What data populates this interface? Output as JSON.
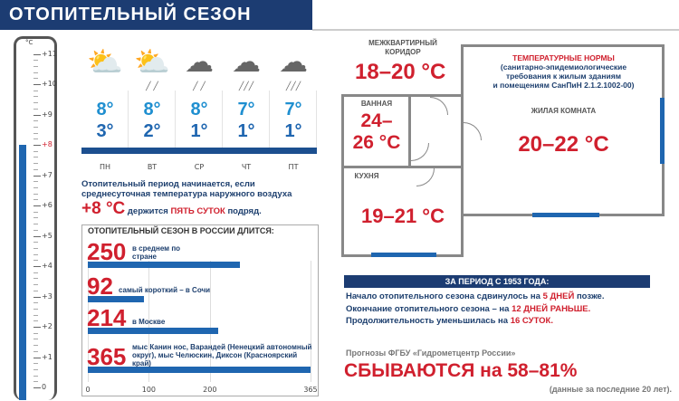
{
  "title": "ОТОПИТЕЛЬНЫЙ СЕЗОН",
  "thermometer": {
    "unit": "°C",
    "ticks": [
      "+11",
      "+10",
      "+9",
      "+8",
      "+7",
      "+6",
      "+5",
      "+4",
      "+3",
      "+2",
      "+1",
      "0"
    ],
    "level": 8,
    "highlight": "+8"
  },
  "forecast": [
    {
      "day": "ПН",
      "high": "8°",
      "low": "3°",
      "icon": "sun-cloud-icon"
    },
    {
      "day": "ВТ",
      "high": "8°",
      "low": "2°",
      "icon": "sun-cloud-rain-icon"
    },
    {
      "day": "СР",
      "high": "8°",
      "low": "1°",
      "icon": "cloud-rain-icon"
    },
    {
      "day": "ЧТ",
      "high": "7°",
      "low": "1°",
      "icon": "clouds-heavy-rain-icon"
    },
    {
      "day": "ПТ",
      "high": "7°",
      "low": "1°",
      "icon": "clouds-heavy-rain-icon"
    }
  ],
  "start_rule": {
    "line1": "Отопительный период начинается, если",
    "line2": "среднесуточная температура наружного воздуха",
    "temp": "+8 °C",
    "mid": "держится",
    "highlight": "ПЯТЬ СУТОК",
    "end": "подряд."
  },
  "chart_data": {
    "type": "bar",
    "title": "ОТОПИТЕЛЬНЫЙ СЕЗОН В РОССИИ ДЛИТСЯ:",
    "orientation": "horizontal",
    "bars": [
      {
        "value": 250,
        "label": "250",
        "desc": "в среднем по стране"
      },
      {
        "value": 92,
        "label": "92",
        "desc": "самый короткий – в Сочи"
      },
      {
        "value": 214,
        "label": "214",
        "desc": "в Москве"
      },
      {
        "value": 365,
        "label": "365",
        "desc": "мыс Канин нос, Варандей (Ненецкий автономный округ), мыс Челюскин, Диксон (Красноярский край)"
      }
    ],
    "xticks": [
      0,
      100,
      200,
      365
    ],
    "xlim": [
      0,
      365
    ],
    "grid": true
  },
  "floorplan": {
    "corridor": {
      "name": "МЕЖКВАРТИРНЫЙ КОРИДОР",
      "temp": "18–20 °C"
    },
    "norms": {
      "title": "ТЕМПЕРАТУРНЫЕ НОРМЫ",
      "l1": "(санитарно-эпидемиологические",
      "l2": "требования к жилым зданиям",
      "l3": "и помещениям СанПиН 2.1.2.1002-00)"
    },
    "living": {
      "name": "ЖИЛАЯ КОМНАТА",
      "temp": "20–22 °C"
    },
    "bath": {
      "name": "ВАННАЯ",
      "temp1": "24–",
      "temp2": "26 °C"
    },
    "kitchen": {
      "name": "КУХНЯ",
      "temp": "19–21 °C"
    }
  },
  "history": {
    "header": "ЗА ПЕРИОД С 1953 ГОДА:",
    "l1a": "Начало отопительного сезона сдвинулось на",
    "l1b": "5 ДНЕЙ",
    "l1c": "позже.",
    "l2a": "Окончание отопительного сезона – на",
    "l2b": "12 ДНЕЙ РАНЬШЕ.",
    "l3a": "Продолжительность уменьшилась на",
    "l3b": "16 СУТОК."
  },
  "forecasts": {
    "source": "Прогнозы ФГБУ «Гидрометцентр России»",
    "big": "СБЫВАЮТСЯ на 58–81%",
    "note": "(данные за последние 20 лет)."
  },
  "colors": {
    "navy": "#1c3c72",
    "blue": "#1f66b0",
    "red": "#d0202e"
  }
}
